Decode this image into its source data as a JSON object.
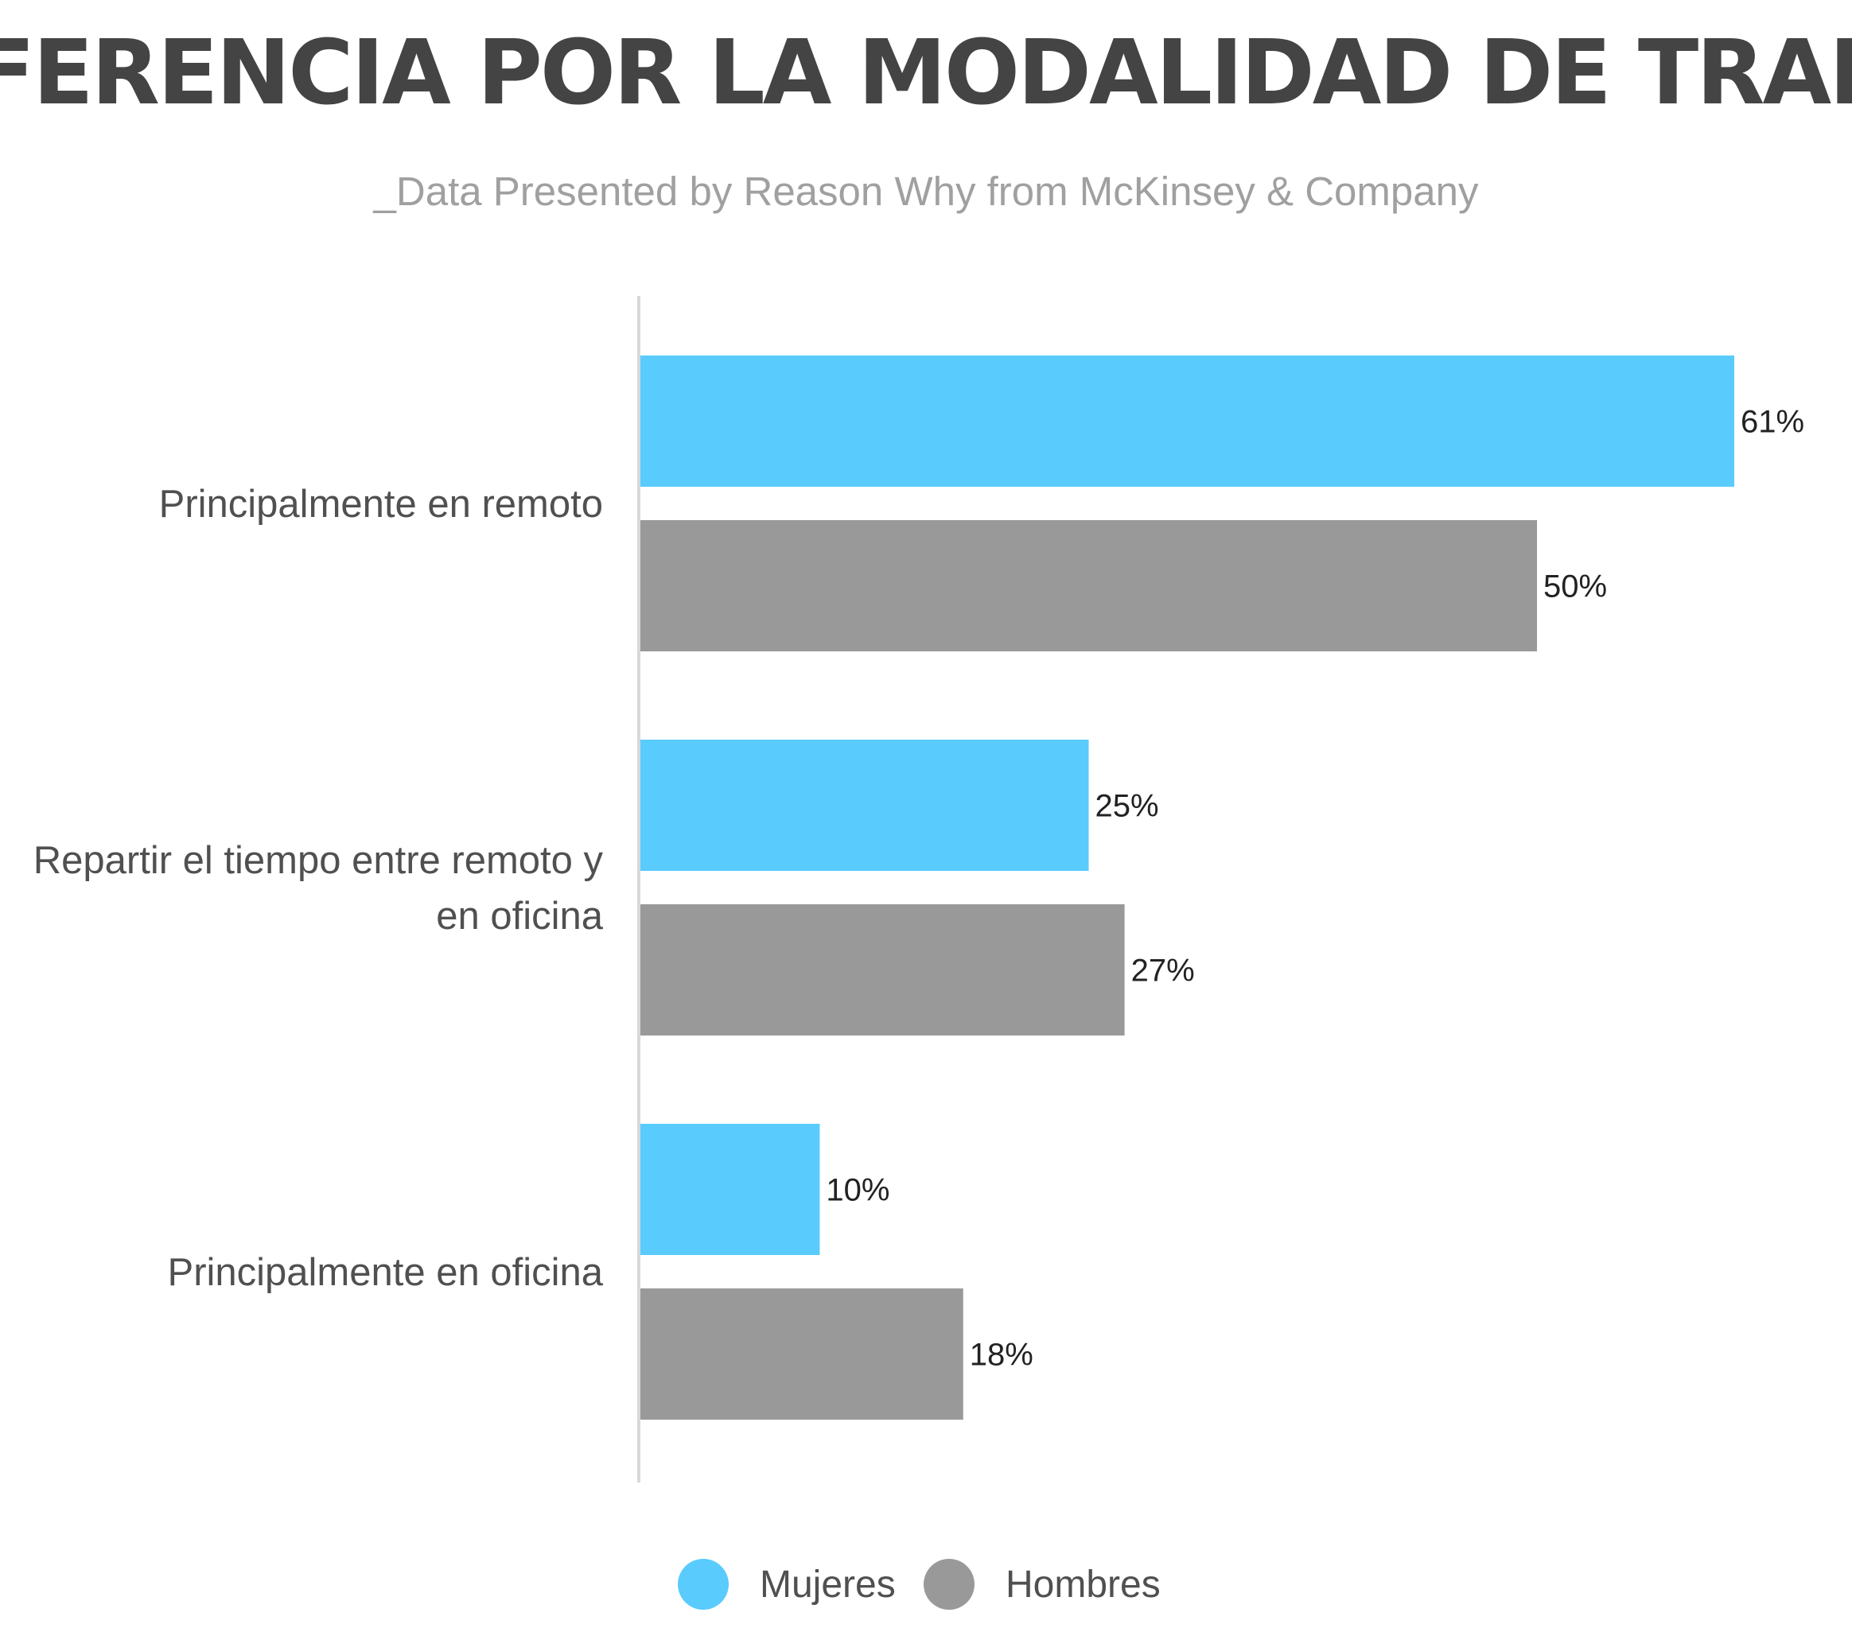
{
  "chart_data": {
    "type": "bar",
    "orientation": "horizontal",
    "title": "PREFERENCIA POR LA MODALIDAD DE TRABAJO",
    "subtitle": "_Data Presented by Reason Why from McKinsey & Company",
    "categories": [
      [
        "Principalmente en remoto"
      ],
      [
        "Repartir el tiempo entre remoto y",
        "en oficina"
      ],
      [
        "Principalmente en oficina"
      ]
    ],
    "series": [
      {
        "name": "Mujeres",
        "color": "#5acbfd",
        "values": [
          61,
          25,
          10
        ],
        "labels": [
          "61%",
          "25%",
          "10%"
        ]
      },
      {
        "name": "Hombres",
        "color": "#999999",
        "values": [
          50,
          27,
          18
        ],
        "labels": [
          "50%",
          "27%",
          "18%"
        ]
      }
    ],
    "xlim": [
      0,
      61
    ],
    "grid": false,
    "legend_position": "bottom-center",
    "axis_color": "#d8d8d8"
  }
}
